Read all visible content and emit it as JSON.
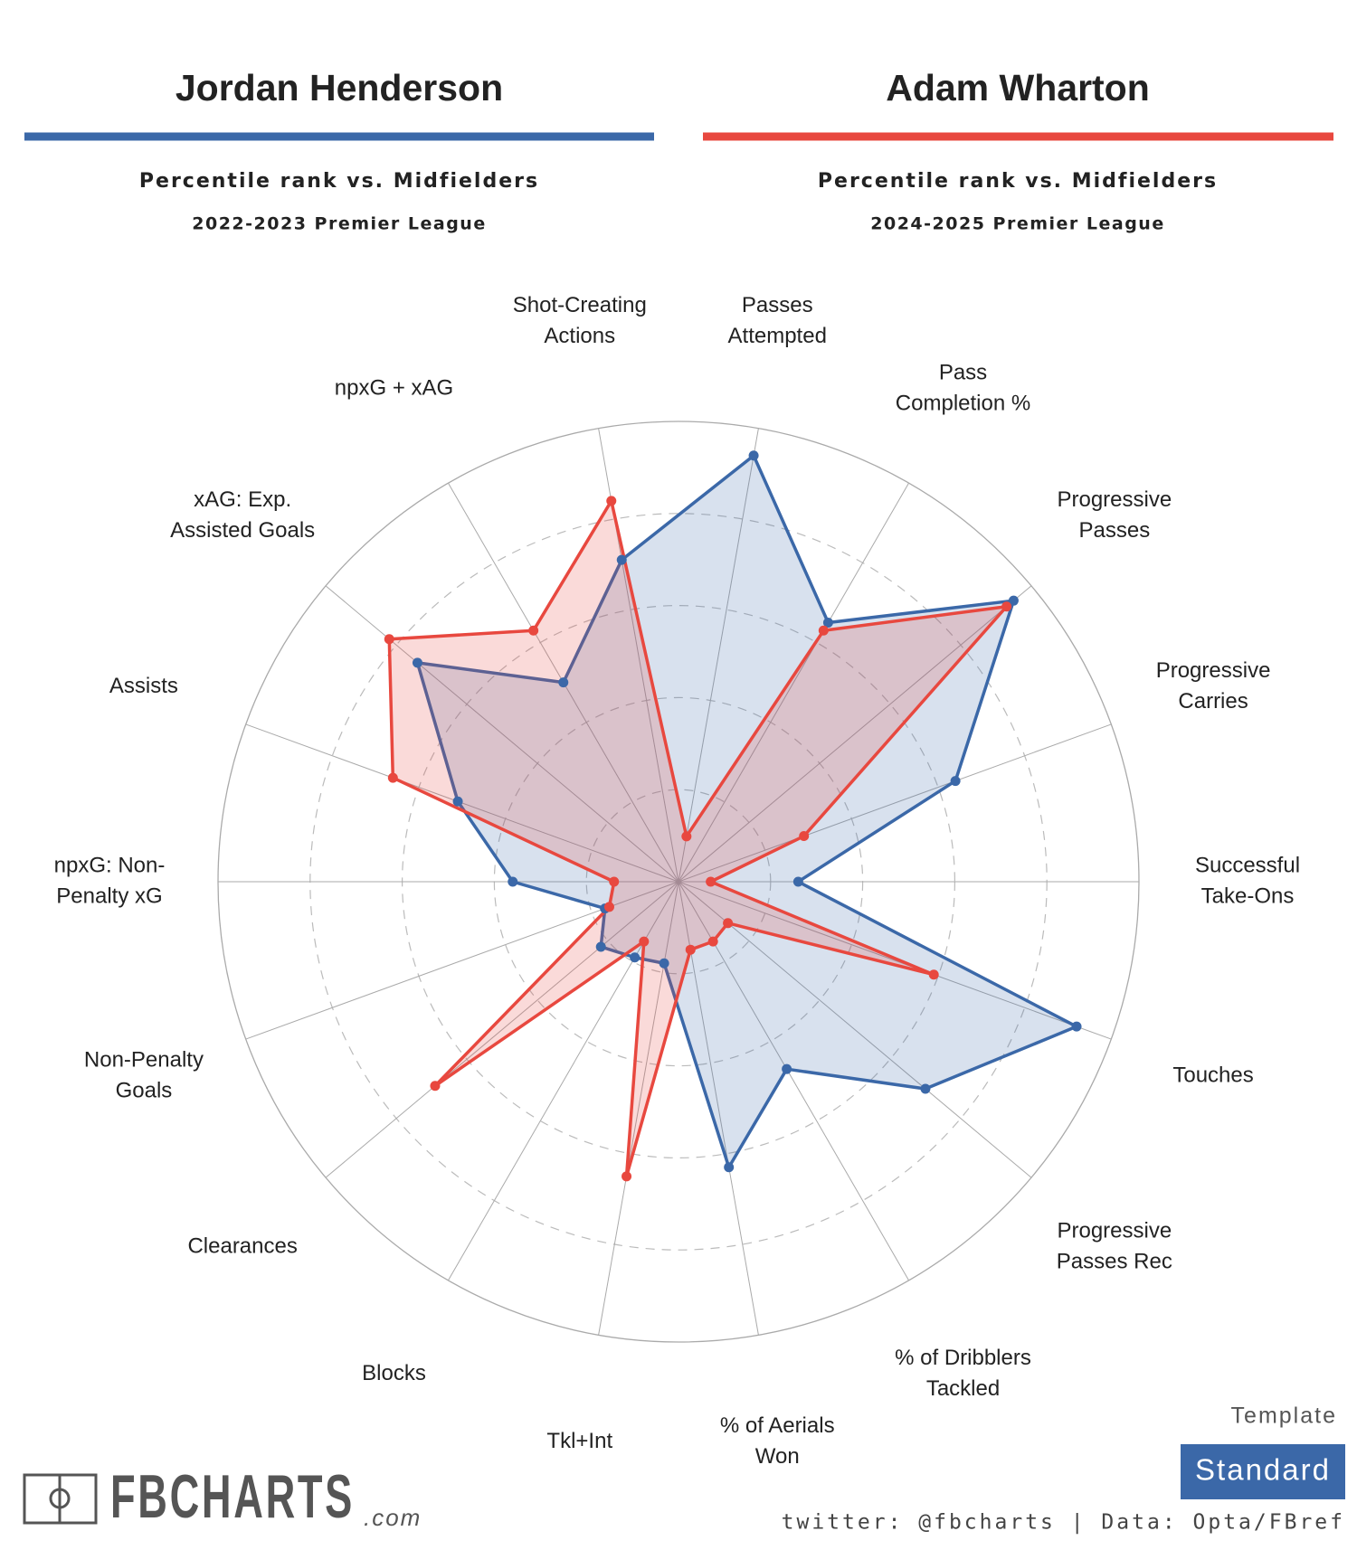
{
  "chart_data": {
    "type": "radar",
    "categories": [
      [
        "Passes",
        "Attempted"
      ],
      [
        "Pass",
        "Completion %"
      ],
      [
        "Progressive",
        "Passes"
      ],
      [
        "Progressive",
        "Carries"
      ],
      [
        "Successful",
        "Take-Ons"
      ],
      [
        "Touches"
      ],
      [
        "Progressive",
        "Passes Rec"
      ],
      [
        "% of Dribblers",
        "Tackled"
      ],
      [
        "% of Aerials",
        "Won"
      ],
      [
        "Tkl+Int"
      ],
      [
        "Blocks"
      ],
      [
        "Clearances"
      ],
      [
        "Non-Penalty",
        "Goals"
      ],
      [
        "npxG: Non-",
        "Penalty xG"
      ],
      [
        "Assists"
      ],
      [
        "xAG: Exp.",
        "Assisted Goals"
      ],
      [
        "npxG + xAG"
      ],
      [
        "Shot-Creating",
        "Actions"
      ]
    ],
    "series": [
      {
        "name": "Jordan Henderson",
        "subtitle": "Percentile rank vs. Midfielders",
        "season": "2022-2023 Premier League",
        "color": "#3b68a8",
        "values": [
          94,
          65,
          95,
          64,
          26,
          92,
          70,
          47,
          63,
          18,
          19,
          22,
          17,
          36,
          51,
          74,
          50,
          71
        ]
      },
      {
        "name": "Adam Wharton",
        "subtitle": "Percentile rank vs. Midfielders",
        "season": "2024-2025 Premier League",
        "color": "#e8483f",
        "values": [
          10,
          63,
          93,
          29,
          7,
          59,
          14,
          15,
          15,
          65,
          15,
          69,
          16,
          14,
          66,
          82,
          63,
          84
        ]
      }
    ],
    "rlim": [
      0,
      100
    ],
    "rticks": [
      20,
      40,
      60,
      80,
      100
    ],
    "grid": true
  },
  "footer": {
    "logo": "FBCHARTS",
    "logo_suffix": ".com",
    "template_label": "Template",
    "template": "Standard",
    "credit": "twitter: @fbcharts | Data: Opta/FBref"
  }
}
